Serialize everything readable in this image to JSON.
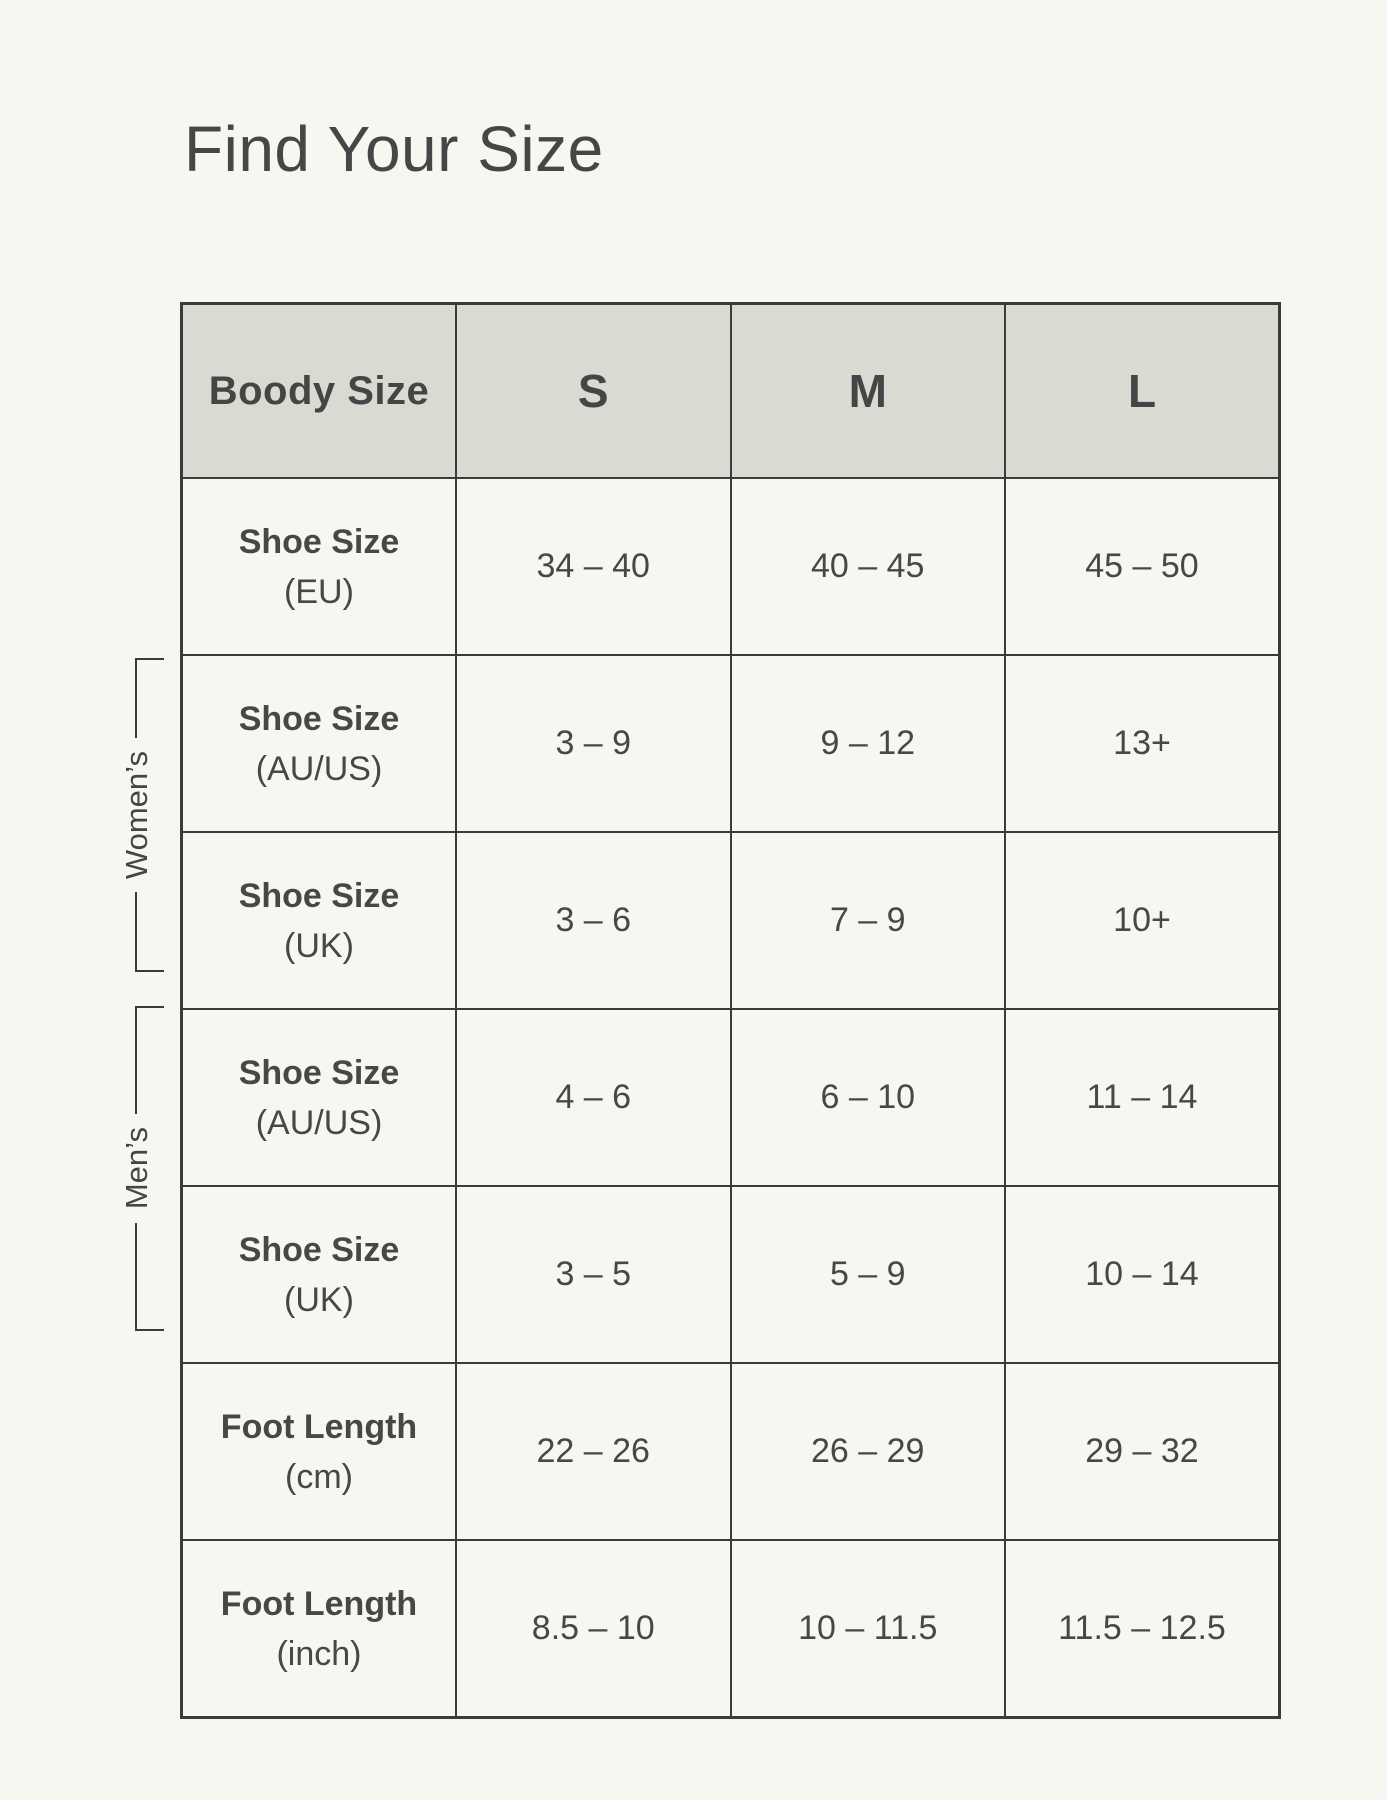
{
  "page": {
    "title": "Find Your Size"
  },
  "table": {
    "header": {
      "col0": "Boody Size",
      "sizes": [
        "S",
        "M",
        "L"
      ]
    },
    "rows": [
      {
        "label": "Shoe Size",
        "unit": "(EU)",
        "s": "34 – 40",
        "m": "40 – 45",
        "l": "45 – 50"
      },
      {
        "label": "Shoe Size",
        "unit": "(AU/US)",
        "s": "3 – 9",
        "m": "9 – 12",
        "l": "13+"
      },
      {
        "label": "Shoe Size",
        "unit": "(UK)",
        "s": "3 – 6",
        "m": "7 – 9",
        "l": "10+"
      },
      {
        "label": "Shoe Size",
        "unit": "(AU/US)",
        "s": "4 – 6",
        "m": "6 – 10",
        "l": "11 – 14"
      },
      {
        "label": "Shoe Size",
        "unit": "(UK)",
        "s": "3 – 5",
        "m": "5 – 9",
        "l": "10 – 14"
      },
      {
        "label": "Foot Length",
        "unit": "(cm)",
        "s": "22 – 26",
        "m": "26 – 29",
        "l": "29 – 32"
      },
      {
        "label": "Foot Length",
        "unit": "(inch)",
        "s": "8.5 – 10",
        "m": "10 – 11.5",
        "l": "11.5 – 12.5"
      }
    ]
  },
  "groups": {
    "womens": "Women’s",
    "mens": "Men’s"
  },
  "colors": {
    "page_background": "#F7F6F0",
    "header_background": "#DBDAD2",
    "border": "#3B3B3B",
    "text": "#454545"
  }
}
